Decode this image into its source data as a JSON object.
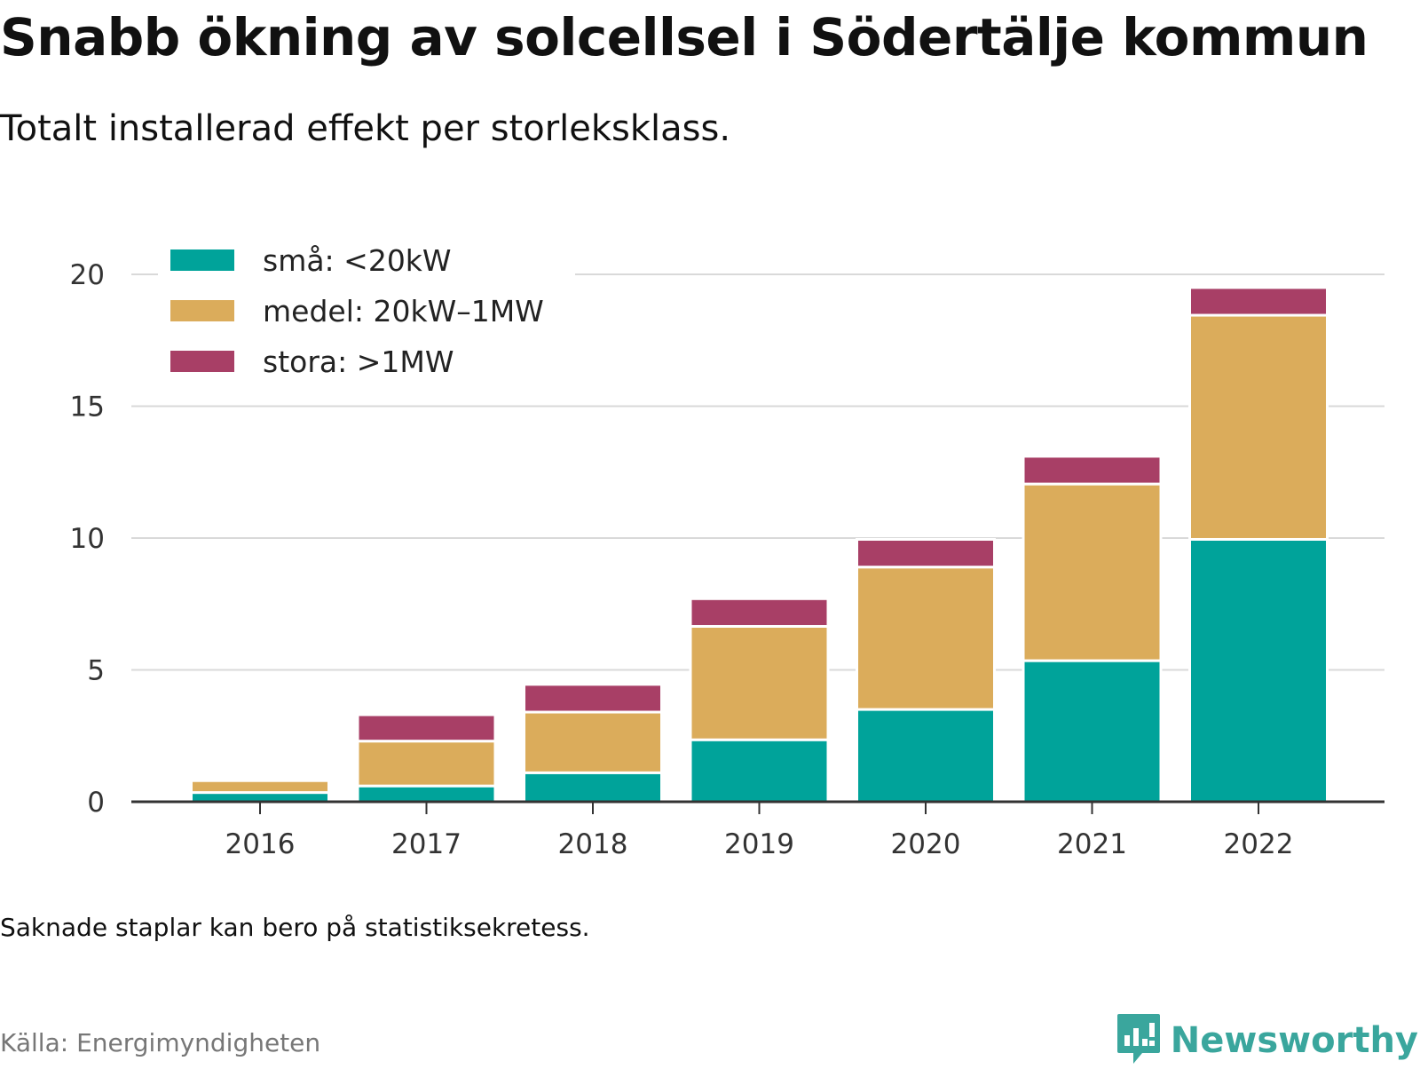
{
  "title": "Snabb ökning av solcellsel i Södertälje kommun",
  "subtitle": "Totalt installerad effekt per storleksklass.",
  "note": "Saknade staplar kan bero på statistiksekretess.",
  "source": "Källa: Energimyndigheten",
  "brand": {
    "name": "Newsworthy",
    "icon": "newsworthy-logo-icon",
    "color": "#3aa69d"
  },
  "chart_data": {
    "type": "bar",
    "stacked": true,
    "categories": [
      "2016",
      "2017",
      "2018",
      "2019",
      "2020",
      "2021",
      "2022"
    ],
    "series": [
      {
        "name": "små: <20kW",
        "color": "#00a39a",
        "values": [
          0.35,
          0.6,
          1.1,
          2.35,
          3.5,
          5.35,
          9.95
        ]
      },
      {
        "name": "medel: 20kW–1MW",
        "color": "#dbac5b",
        "values": [
          0.45,
          1.7,
          2.3,
          4.3,
          5.4,
          6.7,
          8.5
        ]
      },
      {
        "name": "stora: >1MW",
        "color": "#a83f66",
        "values": [
          0.0,
          1.0,
          1.05,
          1.05,
          1.05,
          1.05,
          1.05
        ]
      }
    ],
    "yticks": [
      0,
      5,
      10,
      15,
      20
    ],
    "ylim": [
      0,
      20
    ],
    "grid": true,
    "legend": "top-left"
  }
}
